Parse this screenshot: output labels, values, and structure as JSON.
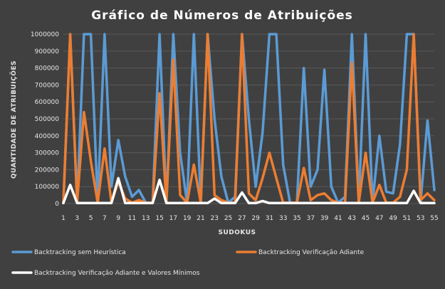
{
  "chart_data": {
    "type": "line",
    "title": "Gráfico de Números de Atribuições",
    "xlabel": "SUDOKUS",
    "ylabel": "QUANTIDADE DE ATRIBUIÇÕES",
    "ylim": [
      0,
      1000000
    ],
    "yticks": [
      0,
      100000,
      200000,
      300000,
      400000,
      500000,
      600000,
      700000,
      800000,
      900000,
      1000000
    ],
    "x": [
      1,
      2,
      3,
      4,
      5,
      6,
      7,
      8,
      9,
      10,
      11,
      12,
      13,
      14,
      15,
      16,
      17,
      18,
      19,
      20,
      21,
      22,
      23,
      24,
      25,
      26,
      27,
      28,
      29,
      30,
      31,
      32,
      33,
      34,
      35,
      36,
      37,
      38,
      39,
      40,
      41,
      42,
      43,
      44,
      45,
      46,
      47,
      48,
      49,
      50,
      51,
      52,
      53,
      54,
      55
    ],
    "xticks_shown": [
      1,
      3,
      5,
      7,
      9,
      11,
      13,
      15,
      17,
      19,
      21,
      23,
      25,
      27,
      29,
      31,
      33,
      35,
      37,
      39,
      41,
      43,
      45,
      47,
      49,
      51,
      53,
      55
    ],
    "grid": true,
    "legend_position": "bottom",
    "series": [
      {
        "name": "Backtracking sem Heurística",
        "color": "#5b9bd5",
        "values": [
          5000,
          1000000,
          5000,
          1000000,
          1000000,
          5000,
          1000000,
          100000,
          375000,
          160000,
          40000,
          80000,
          5000,
          5000,
          1000000,
          5000,
          1000000,
          300000,
          5000,
          1000000,
          5000,
          1000000,
          500000,
          160000,
          5000,
          40000,
          1000000,
          500000,
          100000,
          420000,
          1000000,
          1000000,
          230000,
          5000,
          5000,
          800000,
          100000,
          200000,
          790000,
          100000,
          5000,
          40000,
          1000000,
          5000,
          1000000,
          5000,
          400000,
          70000,
          60000,
          350000,
          1000000,
          1000000,
          5000,
          490000,
          80000
        ]
      },
      {
        "name": "Backtracking Verificação Adiante",
        "color": "#ed7d31",
        "values": [
          5000,
          1000000,
          5000,
          540000,
          250000,
          5000,
          325000,
          5000,
          130000,
          30000,
          5000,
          20000,
          5000,
          5000,
          650000,
          5000,
          850000,
          50000,
          5000,
          230000,
          5000,
          1000000,
          50000,
          20000,
          5000,
          5000,
          1000000,
          60000,
          20000,
          150000,
          300000,
          150000,
          5000,
          5000,
          5000,
          210000,
          20000,
          50000,
          60000,
          20000,
          5000,
          5000,
          830000,
          5000,
          300000,
          5000,
          110000,
          5000,
          5000,
          40000,
          200000,
          1000000,
          20000,
          60000,
          20000
        ]
      },
      {
        "name": "Backtracking Verificação Adiante e Valores Mínimos",
        "color": "#ffffff",
        "values": [
          3000,
          110000,
          3000,
          3000,
          3000,
          3000,
          3000,
          3000,
          150000,
          3000,
          3000,
          3000,
          3000,
          3000,
          140000,
          3000,
          3000,
          3000,
          3000,
          3000,
          3000,
          3000,
          30000,
          3000,
          3000,
          3000,
          65000,
          3000,
          3000,
          15000,
          3000,
          3000,
          3000,
          3000,
          3000,
          3000,
          3000,
          3000,
          3000,
          3000,
          3000,
          3000,
          3000,
          3000,
          3000,
          3000,
          3000,
          3000,
          3000,
          3000,
          3000,
          75000,
          3000,
          3000,
          3000
        ]
      }
    ]
  }
}
